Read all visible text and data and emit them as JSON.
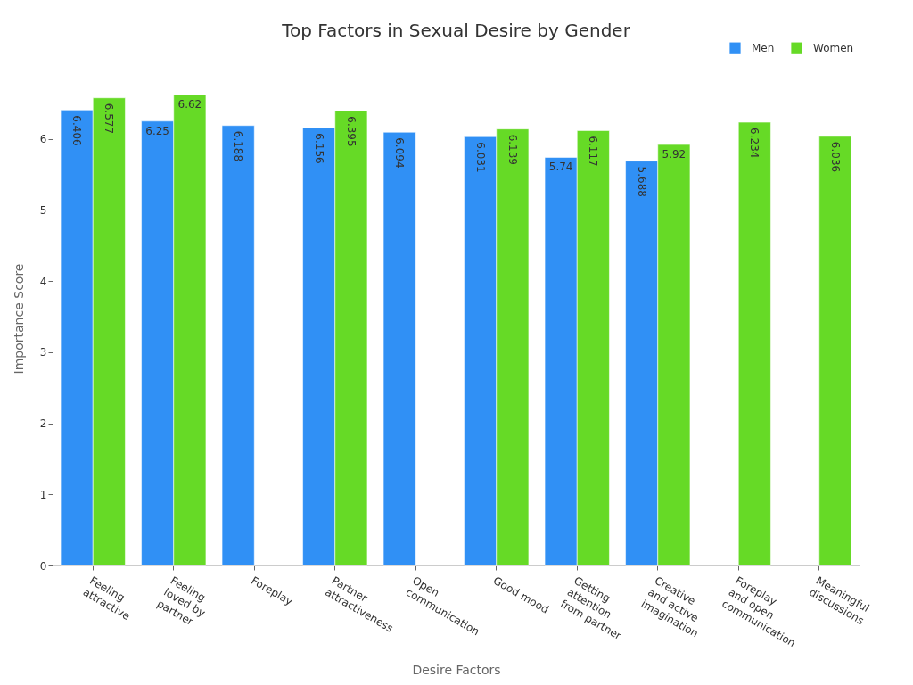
{
  "chart_data": {
    "type": "bar",
    "title": "Top Factors in Sexual Desire by Gender",
    "xlabel": "Desire Factors",
    "ylabel": "Importance Score",
    "categories": [
      "Feeling\nattractive",
      "Feeling\nloved by\npartner",
      "Foreplay",
      "Partner\nattractiveness",
      "Open\ncommunication",
      "Good mood",
      "Getting\nattention\nfrom partner",
      "Creative\nand active\nimagination",
      "Foreplay\nand open\ncommunication",
      "Meaningful\ndiscussions"
    ],
    "series": [
      {
        "name": "Men",
        "color": "#3090f5",
        "values": [
          6.406,
          6.25,
          6.188,
          6.156,
          6.094,
          6.031,
          5.74,
          5.688,
          null,
          null
        ]
      },
      {
        "name": "Women",
        "color": "#66da26",
        "values": [
          6.577,
          6.62,
          null,
          6.395,
          null,
          6.139,
          6.117,
          5.92,
          6.234,
          6.036
        ]
      }
    ],
    "ylim": [
      0,
      6.95
    ],
    "yticks": [
      0,
      1,
      2,
      3,
      4,
      5,
      6
    ],
    "grid": false,
    "legend": "top right",
    "data_labels": true
  }
}
